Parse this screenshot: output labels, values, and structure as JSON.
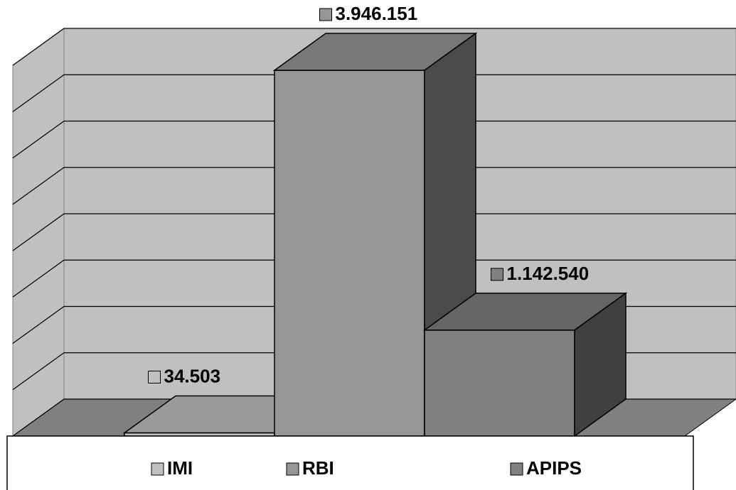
{
  "chart_data": {
    "type": "bar3d",
    "series": [
      {
        "name": "IMI",
        "color": "#c0c0c0",
        "values": [
          34503
        ],
        "value_labels": [
          "34.503"
        ]
      },
      {
        "name": "RBI",
        "color": "#969696",
        "values": [
          3946151
        ],
        "value_labels": [
          "3.946.151"
        ]
      },
      {
        "name": "APIPS",
        "color": "#808080",
        "values": [
          1142540
        ],
        "value_labels": [
          "1.142.540"
        ]
      }
    ],
    "ylim": [
      0,
      4000000
    ],
    "yticks": [
      0,
      500000,
      1000000,
      1500000,
      2000000,
      2500000,
      3000000,
      3500000,
      4000000
    ],
    "grid": true,
    "legend": "bottom"
  }
}
